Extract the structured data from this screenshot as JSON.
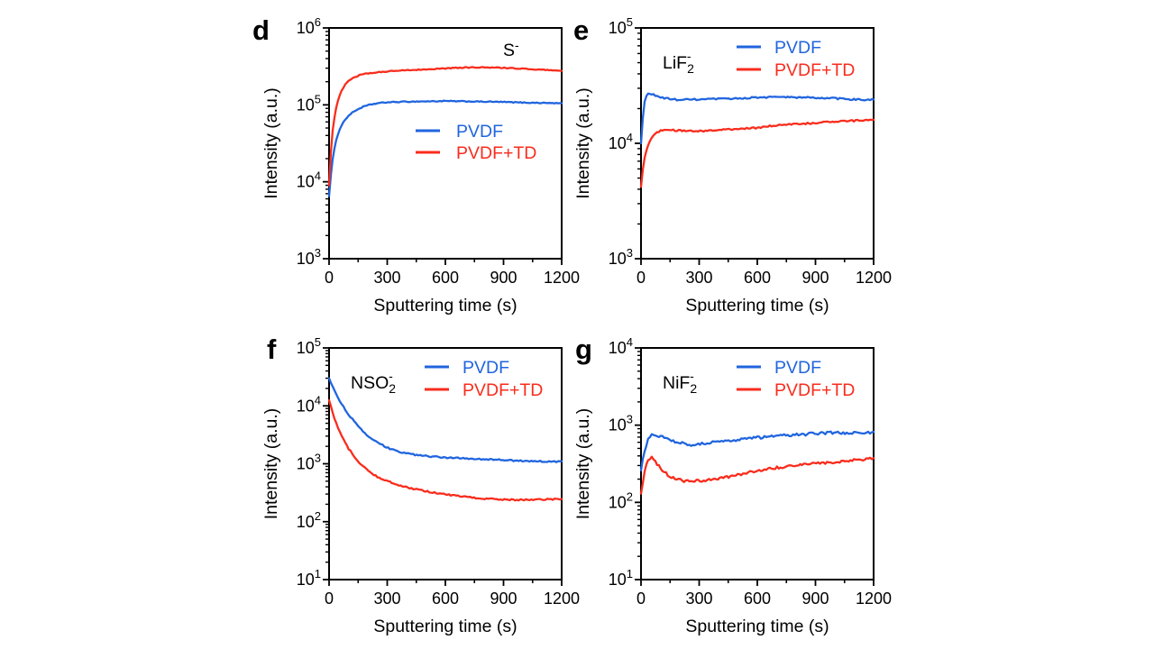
{
  "figure": {
    "background": "#ffffff",
    "colors": {
      "blue": "#2065df",
      "red": "#f92c1c",
      "axis": "#000000",
      "text": "#000000"
    }
  },
  "chart_data": [
    {
      "type": "line",
      "panel_letter": "d",
      "species_label": {
        "base": "S",
        "sub": "",
        "sup": "-"
      },
      "xlabel": "Sputtering time (s)",
      "ylabel": "Intensity (a.u.)",
      "xlim": [
        0,
        1200
      ],
      "xticks": [
        0,
        300,
        600,
        900,
        1200
      ],
      "x_minor_step": 150,
      "y_log_exponents": [
        3,
        6
      ],
      "grid": "off",
      "legend_position": "middle-right",
      "species_position": "top-right",
      "noise_log_amp": 0.006,
      "series": [
        {
          "name": "PVDF",
          "color": "blue",
          "x": [
            0,
            5,
            10,
            15,
            20,
            30,
            40,
            50,
            60,
            80,
            100,
            125,
            150,
            175,
            200,
            250,
            300,
            400,
            500,
            600,
            700,
            800,
            900,
            1000,
            1100,
            1200
          ],
          "y": [
            6500,
            9000,
            13000,
            17000,
            21000,
            29000,
            37000,
            45000,
            52000,
            63000,
            72000,
            81000,
            88000,
            94000,
            99000,
            105000,
            108000,
            110000,
            111000,
            112000,
            111000,
            110000,
            109000,
            107000,
            106000,
            105000
          ]
        },
        {
          "name": "PVDF+TD",
          "color": "red",
          "x": [
            0,
            5,
            10,
            15,
            20,
            30,
            40,
            50,
            60,
            80,
            100,
            125,
            150,
            175,
            200,
            250,
            300,
            400,
            500,
            600,
            700,
            800,
            900,
            1000,
            1100,
            1200
          ],
          "y": [
            9000,
            16000,
            26000,
            38000,
            50000,
            75000,
            100000,
            125000,
            145000,
            180000,
            205000,
            225000,
            240000,
            250000,
            257000,
            265000,
            272000,
            282000,
            290000,
            298000,
            305000,
            308000,
            302000,
            295000,
            285000,
            278000
          ]
        }
      ]
    },
    {
      "type": "line",
      "panel_letter": "e",
      "species_label": {
        "base": "LiF",
        "sub": "2",
        "sup": "-"
      },
      "xlabel": "Sputtering time (s)",
      "ylabel": "Intensity (a.u.)",
      "xlim": [
        0,
        1200
      ],
      "xticks": [
        0,
        300,
        600,
        900,
        1200
      ],
      "x_minor_step": 150,
      "y_log_exponents": [
        3,
        5
      ],
      "grid": "off",
      "legend_position": "top-right",
      "species_position": "top-left",
      "noise_log_amp": 0.007,
      "series": [
        {
          "name": "PVDF",
          "color": "blue",
          "x": [
            0,
            5,
            10,
            15,
            20,
            30,
            40,
            60,
            80,
            100,
            150,
            200,
            300,
            400,
            500,
            600,
            700,
            800,
            900,
            1000,
            1100,
            1200
          ],
          "y": [
            10000,
            13000,
            17000,
            21000,
            24000,
            26200,
            27000,
            26500,
            25800,
            25000,
            24200,
            23800,
            24000,
            24200,
            24500,
            25000,
            25200,
            25000,
            24800,
            24500,
            24000,
            23800
          ]
        },
        {
          "name": "PVDF+TD",
          "color": "red",
          "x": [
            0,
            5,
            10,
            15,
            20,
            30,
            40,
            60,
            80,
            100,
            150,
            200,
            300,
            400,
            500,
            600,
            650,
            700,
            800,
            900,
            1000,
            1100,
            1200
          ],
          "y": [
            4200,
            5000,
            6000,
            7000,
            7800,
            9000,
            10000,
            11500,
            12300,
            12800,
            13000,
            12900,
            12800,
            13000,
            13300,
            13600,
            14000,
            14300,
            14700,
            15000,
            15400,
            15700,
            16000
          ]
        }
      ]
    },
    {
      "type": "line",
      "panel_letter": "f",
      "species_label": {
        "base": "NSO",
        "sub": "2",
        "sup": "-"
      },
      "xlabel": "Sputtering time (s)",
      "ylabel": "Intensity (a.u.)",
      "xlim": [
        0,
        1200
      ],
      "xticks": [
        0,
        300,
        600,
        900,
        1200
      ],
      "x_minor_step": 150,
      "y_log_exponents": [
        1,
        5
      ],
      "grid": "off",
      "legend_position": "top-right",
      "species_position": "top-left",
      "noise_log_amp": 0.012,
      "series": [
        {
          "name": "PVDF",
          "color": "blue",
          "x": [
            0,
            10,
            25,
            50,
            75,
            100,
            125,
            150,
            175,
            200,
            250,
            300,
            350,
            400,
            450,
            500,
            600,
            700,
            800,
            900,
            1000,
            1100,
            1200
          ],
          "y": [
            30000,
            25000,
            19000,
            13000,
            9500,
            7200,
            5600,
            4400,
            3600,
            3000,
            2300,
            1900,
            1650,
            1500,
            1420,
            1360,
            1280,
            1240,
            1200,
            1160,
            1120,
            1100,
            1080
          ]
        },
        {
          "name": "PVDF+TD",
          "color": "red",
          "x": [
            0,
            10,
            25,
            50,
            75,
            100,
            125,
            150,
            175,
            200,
            250,
            300,
            350,
            400,
            450,
            500,
            600,
            700,
            800,
            900,
            1000,
            1100,
            1200
          ],
          "y": [
            12500,
            9500,
            6500,
            3900,
            2600,
            1850,
            1400,
            1100,
            900,
            760,
            590,
            500,
            440,
            395,
            360,
            335,
            295,
            270,
            250,
            240,
            238,
            242,
            245
          ]
        }
      ]
    },
    {
      "type": "line",
      "panel_letter": "g",
      "species_label": {
        "base": "NiF",
        "sub": "2",
        "sup": "-"
      },
      "xlabel": "Sputtering time (s)",
      "ylabel": "Intensity (a.u.)",
      "xlim": [
        0,
        1200
      ],
      "xticks": [
        0,
        300,
        600,
        900,
        1200
      ],
      "x_minor_step": 150,
      "y_log_exponents": [
        1,
        4
      ],
      "grid": "off",
      "legend_position": "top-right",
      "species_position": "top-left",
      "noise_log_amp": 0.018,
      "series": [
        {
          "name": "PVDF",
          "color": "blue",
          "x": [
            0,
            10,
            20,
            30,
            40,
            55,
            70,
            90,
            110,
            140,
            170,
            200,
            250,
            300,
            350,
            400,
            500,
            600,
            700,
            800,
            900,
            1000,
            1100,
            1200
          ],
          "y": [
            260,
            360,
            480,
            590,
            680,
            760,
            770,
            730,
            720,
            660,
            620,
            590,
            560,
            570,
            590,
            610,
            650,
            690,
            720,
            750,
            780,
            800,
            790,
            800
          ]
        },
        {
          "name": "PVDF+TD",
          "color": "red",
          "x": [
            0,
            10,
            20,
            30,
            40,
            55,
            70,
            90,
            110,
            140,
            170,
            200,
            250,
            300,
            350,
            400,
            500,
            600,
            700,
            800,
            900,
            1000,
            1100,
            1200
          ],
          "y": [
            130,
            180,
            260,
            330,
            375,
            380,
            350,
            300,
            260,
            225,
            205,
            195,
            185,
            190,
            195,
            200,
            230,
            255,
            280,
            300,
            320,
            335,
            350,
            380
          ]
        }
      ]
    }
  ]
}
